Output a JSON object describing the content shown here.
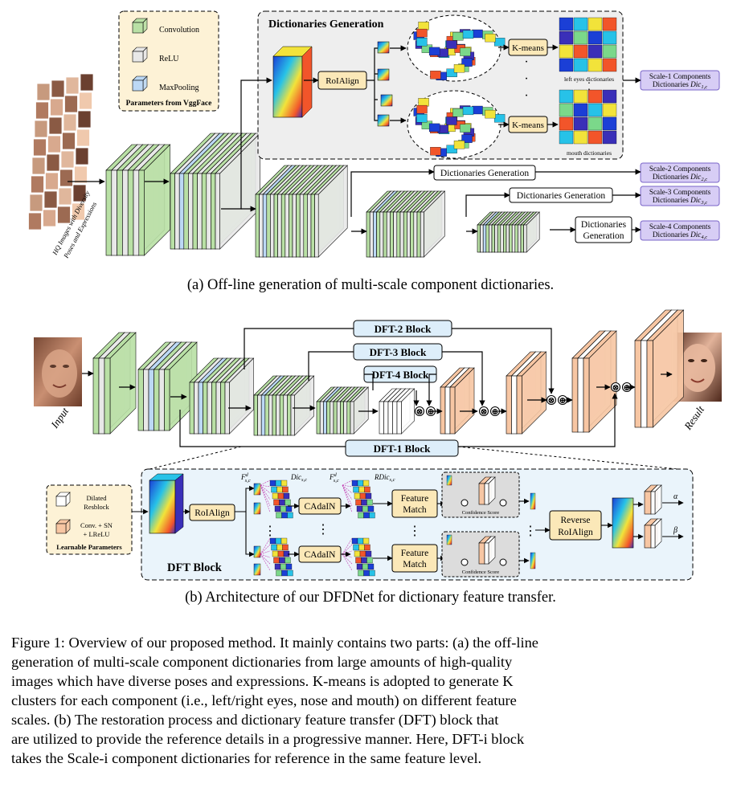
{
  "legend_a": {
    "items": [
      {
        "label": "Convolution",
        "color": "#b9e0a5"
      },
      {
        "label": "ReLU",
        "color": "#e8e8e8"
      },
      {
        "label": "MaxPooling",
        "color": "#bcd8f5"
      }
    ],
    "title": "Parameters from VggFace"
  },
  "input_a": {
    "caption_line1": "HQ Images with Diversity",
    "caption_line2": "Poses and Expressions"
  },
  "dict_gen": {
    "title": "Dictionaries Generation",
    "roialign": "RoIAlign",
    "kmeans": "K-means",
    "left_eyes": "left eyes dictionaries",
    "mouth": "mouth dictionaries",
    "dots": "·"
  },
  "scale_outputs": [
    {
      "line1": "Scale-1 Components",
      "line2": "Dictionaries ",
      "dic": "Dic",
      "sub": "1,c"
    },
    {
      "line1": "Scale-2 Components",
      "line2": "Dictionaries ",
      "dic": "Dic",
      "sub": "2,c"
    },
    {
      "line1": "Scale-3 Components",
      "line2": "Dictionaries ",
      "dic": "Dic",
      "sub": "3,c"
    },
    {
      "line1": "Scale-4 Components",
      "line2": "Dictionaries ",
      "dic": "Dic",
      "sub": "4,c"
    }
  ],
  "dg_boxes": [
    "Dictionaries Generation",
    "Dictionaries Generation",
    "Dictionaries",
    "Generation"
  ],
  "caption_a": "(a)  Off-line generation of multi-scale component dictionaries.",
  "net_b": {
    "input": "Input",
    "result": "Result",
    "dft2": "DFT-2 Block",
    "dft3": "DFT-3 Block",
    "dft4": "DFT-4 Block",
    "dft1": "DFT-1 Block",
    "otimes": "⊗",
    "oplus": "⊕"
  },
  "legend_b": {
    "items": [
      {
        "label_line1": "Dilated",
        "label_line2": "Resblock",
        "color": "#ffffff"
      },
      {
        "label_line1": "Conv. + SN",
        "label_line2": "+ LReLU",
        "color": "#f7c6a3"
      }
    ],
    "title": "Learnable Parameters"
  },
  "dft_block": {
    "title": "DFT Block",
    "roialign": "RoIAlign",
    "cadain": "CAdaIN",
    "feature_match_line1": "Feature",
    "feature_match_line2": "Match",
    "confidence": "Confidence Score",
    "reverse_line1": "Reverse",
    "reverse_line2": "RoIAlign",
    "F": "F",
    "d": "d",
    "sc": "s,c",
    "s": "s",
    "Dic": "Dic",
    "RDic": "RDic",
    "alpha": "α",
    "beta": "β",
    "vdots": "⋮"
  },
  "caption_b": "(b)  Architecture of our DFDNet for dictionary feature transfer.",
  "figure_caption": {
    "lines": [
      "Figure 1: Overview of our proposed method.  It mainly contains two parts: (a) the off-line",
      "generation of multi-scale component dictionaries from large amounts of high-quality",
      "images which have diverse poses and expressions.  K-means is adopted to generate K",
      "clusters for each component (i.e., left/right eyes, nose and mouth) on different feature",
      "scales.  (b) The restoration process and dictionary feature transfer (DFT) block that",
      "are utilized to provide the reference details in a progressive manner.  Here, DFT-i block",
      "takes the Scale-i component dictionaries for reference in the same feature level."
    ]
  },
  "colors": {
    "conv": "#b9e0a5",
    "relu": "#e8e8e8",
    "pool": "#bcd8f5",
    "learn": "#f7c6a3",
    "scale_box": "#d7cdf5",
    "scale_border": "#7a64c8",
    "beige": "#fbe8b8",
    "dft_bg": "#eaf4fb"
  }
}
